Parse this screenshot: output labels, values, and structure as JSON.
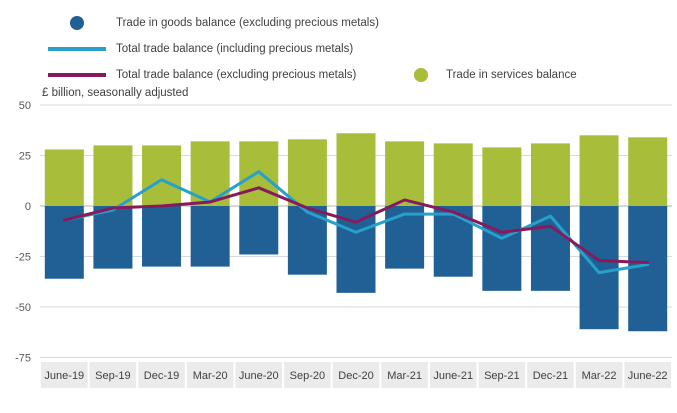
{
  "chart_data": {
    "type": "combo",
    "subtitle": "£ billion, seasonally adjusted",
    "legend_position": "top",
    "grid": true,
    "ylim": [
      -75,
      50
    ],
    "yticks": [
      50,
      25,
      0,
      -25,
      -50,
      -75
    ],
    "categories": [
      "June-19",
      "Sep-19",
      "Dec-19",
      "Mar-20",
      "June-20",
      "Sep-20",
      "Dec-20",
      "Mar-21",
      "June-21",
      "Sep-21",
      "Dec-21",
      "Mar-22",
      "June-22"
    ],
    "series": [
      {
        "name": "Trade in goods balance (excluding precious metals)",
        "type": "bar",
        "marker": "circle",
        "color": "#206095",
        "values": [
          -36,
          -31,
          -30,
          -30,
          -24,
          -34,
          -43,
          -31,
          -35,
          -42,
          -42,
          -61,
          -62
        ]
      },
      {
        "name": "Total trade balance (including precious metals)",
        "type": "line",
        "marker": "line",
        "color": "#27a0cc",
        "values": [
          -7,
          -2,
          13,
          2,
          17,
          -3,
          -13,
          -4,
          -4,
          -16,
          -5,
          -33,
          -29
        ]
      },
      {
        "name": "Total trade balance (excluding precious metals)",
        "type": "line",
        "marker": "line",
        "color": "#871a5b",
        "values": [
          -7,
          -1,
          0,
          2,
          9,
          -1,
          -8,
          3,
          -3,
          -13,
          -10,
          -27,
          -28
        ]
      },
      {
        "name": "Trade in services balance",
        "type": "bar",
        "marker": "circle",
        "color": "#a8bd3a",
        "values": [
          28,
          30,
          30,
          32,
          32,
          33,
          36,
          32,
          31,
          29,
          31,
          35,
          34
        ]
      }
    ],
    "colors": {
      "gridline": "#d9d9d9",
      "zero_line": "#b3b3b3",
      "xband": "#ebebeb",
      "text": "#414042"
    }
  }
}
